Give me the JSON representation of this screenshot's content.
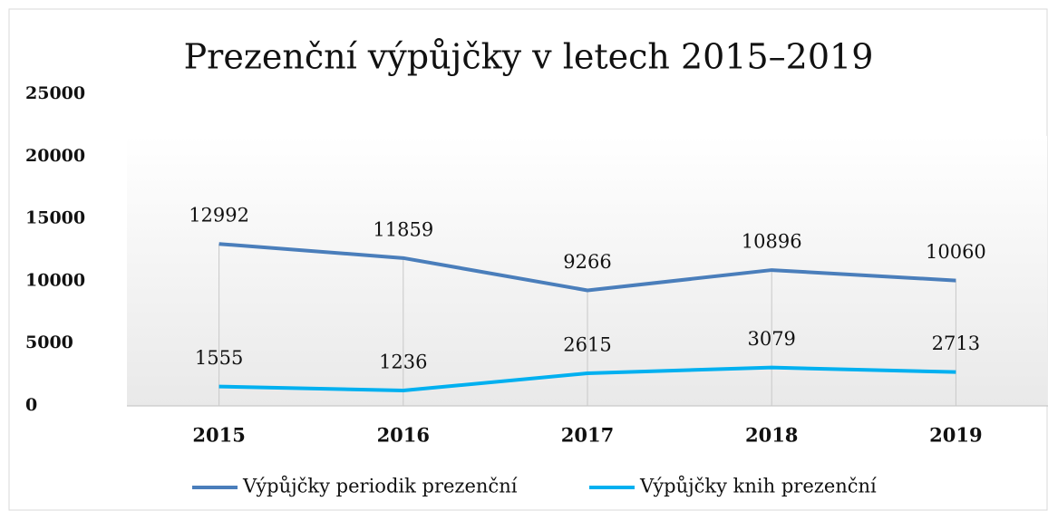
{
  "chart_data": {
    "type": "line",
    "title": "Prezenční výpůjčky v letech 2015–2019",
    "categories": [
      "2015",
      "2016",
      "2017",
      "2018",
      "2019"
    ],
    "series": [
      {
        "name": "Výpůjčky periodik prezenční",
        "color": "#4a7ebb",
        "values": [
          12992,
          11859,
          9266,
          10896,
          10060
        ]
      },
      {
        "name": "Výpůjčky knih prezenční",
        "color": "#00b0f0",
        "values": [
          1555,
          1236,
          2615,
          3079,
          2713
        ]
      }
    ],
    "ylim": [
      0,
      25000
    ],
    "yticks": [
      0,
      5000,
      10000,
      15000,
      20000,
      25000
    ],
    "legend": "bottom"
  }
}
